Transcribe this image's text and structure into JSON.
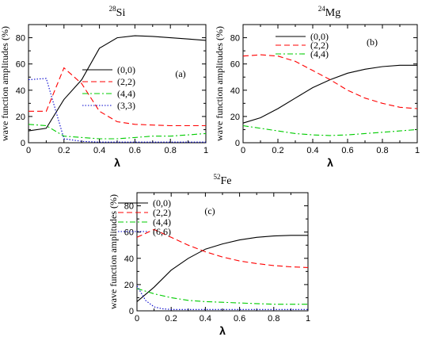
{
  "colors": {
    "s00": "#000000",
    "s22": "#ff0000",
    "s44": "#00cc00",
    "s33": "#0000cc",
    "s66": "#0000cc"
  },
  "chart_data": [
    {
      "type": "line",
      "title_sup": "28",
      "title_main": "Si",
      "panel_tag": "(a)",
      "xlabel": "λ",
      "ylabel": "wave function amplitudes (%)",
      "xlim": [
        0,
        1
      ],
      "ylim": [
        0,
        90
      ],
      "xticks": [
        "0",
        "0.2",
        "0.4",
        "0.6",
        "0.8",
        "1"
      ],
      "xtick_values": [
        0,
        0.2,
        0.4,
        0.6,
        0.8,
        1
      ],
      "yticks": [
        "0",
        "20",
        "40",
        "60",
        "80"
      ],
      "ytick_values": [
        0,
        20,
        40,
        60,
        80
      ],
      "legend_position": "right-middle",
      "series": [
        {
          "name": "(0,0)",
          "style": "solid",
          "color_key": "s00",
          "x": [
            0,
            0.1,
            0.2,
            0.3,
            0.4,
            0.5,
            0.6,
            0.7,
            0.8,
            0.9,
            1.0
          ],
          "y": [
            9,
            11,
            33,
            48,
            72,
            80,
            81.5,
            81,
            80,
            79,
            78
          ]
        },
        {
          "name": "(2,2)",
          "style": "dashed",
          "color_key": "s22",
          "x": [
            0,
            0.1,
            0.2,
            0.3,
            0.4,
            0.5,
            0.6,
            0.7,
            0.8,
            0.9,
            1.0
          ],
          "y": [
            24,
            24,
            57,
            45,
            24,
            16,
            14,
            13.5,
            13,
            13,
            13
          ]
        },
        {
          "name": "(4,4)",
          "style": "dashdot",
          "color_key": "s44",
          "x": [
            0,
            0.1,
            0.2,
            0.3,
            0.4,
            0.5,
            0.6,
            0.7,
            0.8,
            0.9,
            1.0
          ],
          "y": [
            14,
            13,
            5,
            4,
            3,
            3,
            4,
            5,
            5,
            6,
            7
          ]
        },
        {
          "name": "(3,3)",
          "style": "dotted",
          "color_key": "s33",
          "x": [
            0,
            0.1,
            0.2,
            0.3,
            0.4,
            0.5,
            0.6,
            0.7,
            0.8,
            0.9,
            1.0
          ],
          "y": [
            48,
            49,
            3,
            1,
            0.5,
            0.5,
            0.5,
            0.5,
            0.5,
            0.5,
            0.5
          ]
        }
      ]
    },
    {
      "type": "line",
      "title_sup": "24",
      "title_main": "Mg",
      "panel_tag": "(b)",
      "xlabel": "λ",
      "ylabel": "wave function amplitudes (%)",
      "xlim": [
        0,
        1
      ],
      "ylim": [
        0,
        90
      ],
      "xticks": [
        "0",
        "0.2",
        "0.4",
        "0.6",
        "0.8",
        "1"
      ],
      "xtick_values": [
        0,
        0.2,
        0.4,
        0.6,
        0.8,
        1
      ],
      "yticks": [
        "0",
        "20",
        "40",
        "60",
        "80"
      ],
      "ytick_values": [
        0,
        20,
        40,
        60,
        80
      ],
      "legend_position": "top-right",
      "series": [
        {
          "name": "(0,0)",
          "style": "solid",
          "color_key": "s00",
          "x": [
            0,
            0.1,
            0.2,
            0.3,
            0.4,
            0.5,
            0.6,
            0.7,
            0.8,
            0.9,
            1.0
          ],
          "y": [
            15,
            19,
            26,
            34,
            42,
            48,
            53,
            56,
            58,
            59,
            59
          ]
        },
        {
          "name": "(2,2)",
          "style": "dashed",
          "color_key": "s22",
          "x": [
            0,
            0.1,
            0.2,
            0.3,
            0.4,
            0.5,
            0.6,
            0.7,
            0.8,
            0.9,
            1.0
          ],
          "y": [
            66,
            67,
            66,
            62,
            55,
            48,
            40,
            34,
            30,
            27,
            26
          ]
        },
        {
          "name": "(4,4)",
          "style": "dashdot",
          "color_key": "s44",
          "x": [
            0,
            0.1,
            0.2,
            0.3,
            0.4,
            0.5,
            0.6,
            0.7,
            0.8,
            0.9,
            1.0
          ],
          "y": [
            13,
            11,
            9,
            7,
            6,
            5.5,
            6,
            7,
            8,
            9,
            10
          ]
        }
      ]
    },
    {
      "type": "line",
      "title_sup": "52",
      "title_main": "Fe",
      "panel_tag": "(c)",
      "xlabel": "λ",
      "ylabel": "wave function amplitudes (%)",
      "xlim": [
        0,
        1
      ],
      "ylim": [
        0,
        90
      ],
      "xticks": [
        "0",
        "0.2",
        "0.4",
        "0.6",
        "0.8",
        "1"
      ],
      "xtick_values": [
        0,
        0.2,
        0.4,
        0.6,
        0.8,
        1
      ],
      "yticks": [
        "0",
        "20",
        "40",
        "60",
        "80"
      ],
      "ytick_values": [
        0,
        20,
        40,
        60,
        80
      ],
      "legend_position": "top-left",
      "series": [
        {
          "name": "(0,0)",
          "style": "solid",
          "color_key": "s00",
          "x": [
            0,
            0.1,
            0.2,
            0.3,
            0.4,
            0.5,
            0.6,
            0.7,
            0.8,
            0.9,
            1.0
          ],
          "y": [
            7,
            18,
            31,
            40,
            47,
            51,
            54,
            56,
            57,
            57.5,
            57.5
          ]
        },
        {
          "name": "(2,2)",
          "style": "dashed",
          "color_key": "s22",
          "x": [
            0,
            0.1,
            0.2,
            0.3,
            0.4,
            0.5,
            0.6,
            0.7,
            0.8,
            0.9,
            1.0
          ],
          "y": [
            56,
            62,
            56,
            50,
            45,
            41,
            38,
            36,
            34.5,
            33.5,
            33
          ]
        },
        {
          "name": "(4,4)",
          "style": "dashdot",
          "color_key": "s44",
          "x": [
            0,
            0.1,
            0.2,
            0.3,
            0.4,
            0.5,
            0.6,
            0.7,
            0.8,
            0.9,
            1.0
          ],
          "y": [
            17,
            13,
            10,
            8,
            7,
            6.5,
            6,
            5.5,
            5,
            5,
            5
          ]
        },
        {
          "name": "(6,6)",
          "style": "dotted",
          "color_key": "s66",
          "x": [
            0,
            0.05,
            0.1,
            0.15,
            0.2,
            0.3,
            0.4,
            0.5,
            0.6,
            0.7,
            0.8,
            0.9,
            1.0
          ],
          "y": [
            19,
            8,
            3,
            1.5,
            1,
            1,
            1,
            1,
            1,
            1,
            1,
            1,
            1
          ]
        }
      ]
    }
  ]
}
